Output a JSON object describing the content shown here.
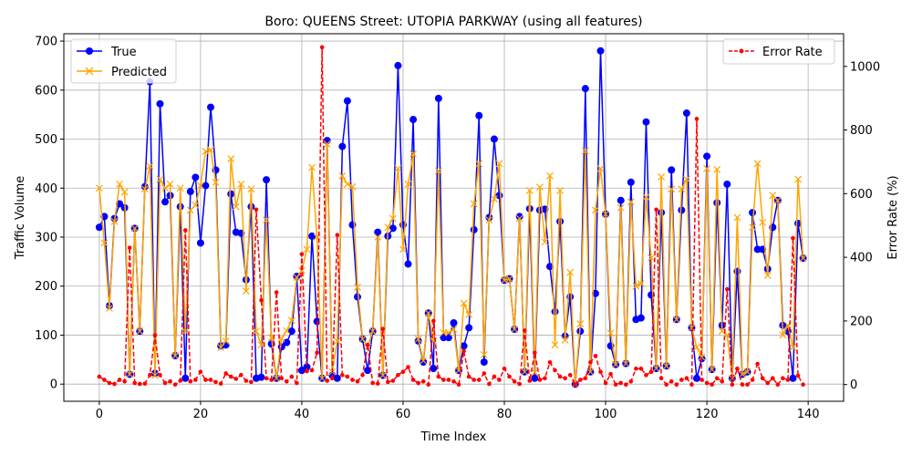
{
  "chart_data": {
    "type": "line",
    "title": "Boro: QUEENS Street: UTOPIA PARKWAY (using all features)",
    "xlabel": "Time Index",
    "ylabel": "Traffic Volume",
    "ylabel_right": "Error Rate (%)",
    "xlim": [
      -7,
      147
    ],
    "ylim": [
      -35,
      715
    ],
    "ylim_right": [
      -52.5,
      1102.5
    ],
    "xticks": [
      0,
      20,
      40,
      60,
      80,
      100,
      120,
      140
    ],
    "yticks": [
      0,
      100,
      200,
      300,
      400,
      500,
      600,
      700
    ],
    "yticks_right": [
      0,
      200,
      400,
      600,
      800,
      1000
    ],
    "grid": true,
    "legend_left_position": "upper-left",
    "legend_right_position": "upper-right",
    "colors": {
      "true": "#0000ff",
      "predicted": "#ffa500",
      "error": "#ff0000",
      "grid": "#b0b0b0"
    },
    "series": [
      {
        "name": "True",
        "axis": "left",
        "style": "solid-circle",
        "values": [
          320,
          342,
          160,
          338,
          368,
          360,
          20,
          318,
          108,
          403,
          617,
          22,
          572,
          372,
          385,
          58,
          362,
          12,
          393,
          422,
          288,
          405,
          565,
          437,
          78,
          80,
          388,
          310,
          308,
          213,
          362,
          12,
          14,
          417,
          82,
          12,
          76,
          85,
          108,
          220,
          28,
          35,
          302,
          128,
          12,
          497,
          18,
          12,
          485,
          578,
          325,
          178,
          92,
          28,
          108,
          310,
          18,
          302,
          318,
          650,
          325,
          245,
          540,
          88,
          45,
          145,
          32,
          583,
          95,
          95,
          125,
          28,
          78,
          115,
          315,
          548,
          45,
          340,
          500,
          385,
          212,
          215,
          112,
          342,
          25,
          358,
          12,
          355,
          357,
          240,
          148,
          332,
          98,
          178,
          0,
          108,
          603,
          25,
          185,
          680,
          347,
          78,
          40,
          375,
          42,
          412,
          132,
          135,
          535,
          182,
          32,
          350,
          37,
          437,
          132,
          355,
          553,
          115,
          12,
          52,
          465,
          30,
          370,
          120,
          408,
          12,
          230,
          20,
          25,
          350,
          275,
          275,
          235,
          320,
          375,
          120,
          108,
          12,
          328,
          257
        ]
      },
      {
        "name": "Predicted",
        "axis": "left",
        "style": "solid-x",
        "values": [
          400,
          288,
          155,
          332,
          408,
          392,
          20,
          318,
          108,
          398,
          445,
          18,
          418,
          400,
          408,
          58,
          400,
          108,
          355,
          365,
          405,
          475,
          478,
          412,
          75,
          88,
          460,
          362,
          408,
          190,
          398,
          108,
          80,
          335,
          95,
          12,
          93,
          109,
          130,
          218,
          232,
          275,
          442,
          300,
          12,
          490,
          25,
          88,
          425,
          408,
          403,
          198,
          92,
          75,
          108,
          300,
          18,
          320,
          338,
          440,
          275,
          408,
          470,
          92,
          48,
          145,
          88,
          435,
          105,
          105,
          112,
          28,
          165,
          142,
          368,
          450,
          60,
          335,
          378,
          450,
          212,
          215,
          112,
          338,
          25,
          395,
          24,
          402,
          290,
          425,
          80,
          395,
          90,
          228,
          0,
          123,
          476,
          25,
          355,
          440,
          347,
          104,
          40,
          360,
          42,
          372,
          200,
          205,
          382,
          258,
          32,
          423,
          37,
          398,
          132,
          398,
          418,
          115,
          75,
          55,
          440,
          30,
          438,
          108,
          100,
          12,
          340,
          20,
          25,
          320,
          450,
          330,
          222,
          385,
          375,
          100,
          120,
          75,
          418,
          257
        ]
      },
      {
        "name": "Error Rate",
        "axis": "right",
        "style": "dashed-dot",
        "values": [
          25,
          15,
          5,
          2,
          15,
          10,
          430,
          5,
          2,
          3,
          30,
          155,
          30,
          5,
          10,
          0,
          12,
          485,
          10,
          15,
          40,
          15,
          15,
          8,
          3,
          35,
          25,
          18,
          30,
          12,
          8,
          550,
          265,
          20,
          15,
          290,
          20,
          10,
          25,
          5,
          410,
          42,
          45,
          100,
          1060,
          12,
          20,
          470,
          30,
          25,
          15,
          10,
          30,
          125,
          5,
          3,
          175,
          8,
          12,
          30,
          40,
          55,
          15,
          5,
          10,
          0,
          200,
          25,
          15,
          15,
          10,
          0,
          105,
          25,
          15,
          15,
          35,
          2,
          25,
          15,
          50,
          25,
          10,
          2,
          170,
          12,
          100,
          15,
          20,
          70,
          45,
          25,
          20,
          30,
          0,
          15,
          20,
          70,
          90,
          40,
          5,
          33,
          0,
          5,
          0,
          10,
          50,
          50,
          30,
          40,
          550,
          20,
          0,
          10,
          0,
          15,
          20,
          0,
          835,
          15,
          5,
          0,
          20,
          10,
          300,
          0,
          50,
          0,
          0,
          15,
          65,
          20,
          5,
          20,
          0,
          20,
          15,
          460,
          28,
          0
        ]
      }
    ]
  }
}
